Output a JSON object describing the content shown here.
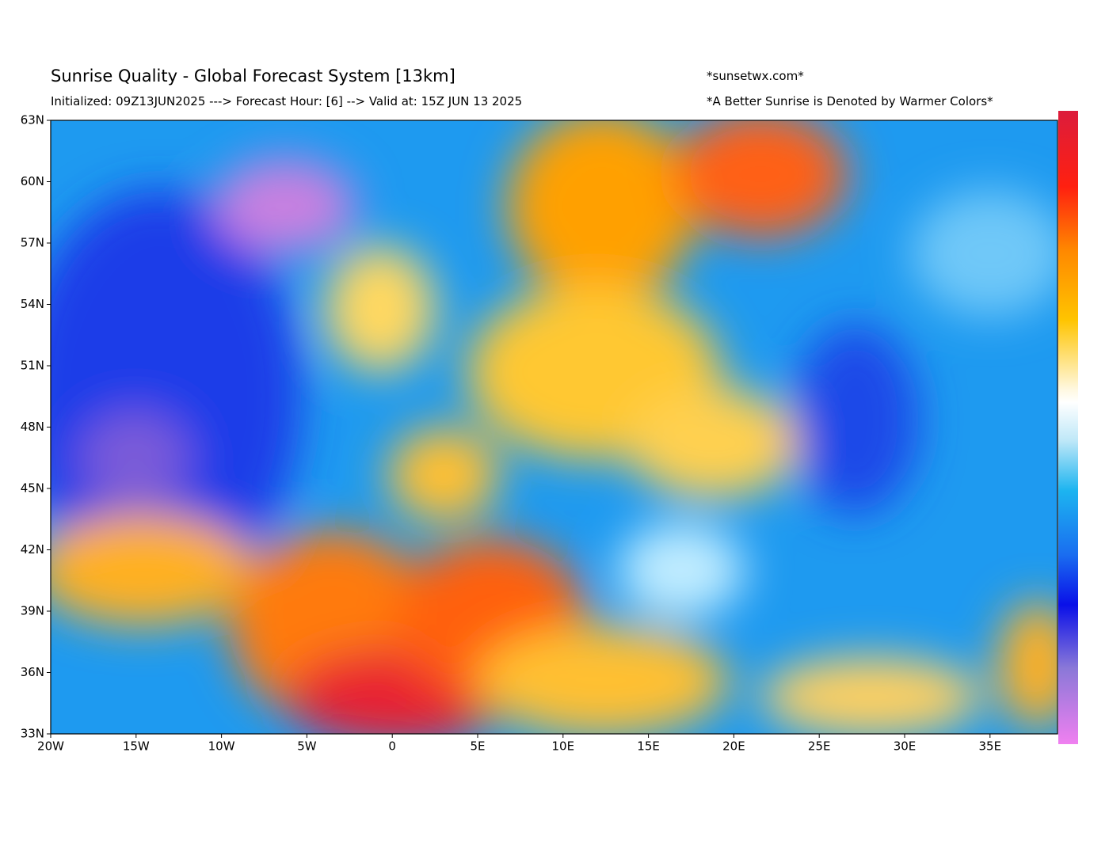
{
  "header": {
    "title": "Sunrise Quality - Global Forecast System [13km]",
    "subtitle": "Initialized: 09Z13JUN2025 ---> Forecast Hour: [6] --> Valid at: 15Z JUN 13 2025",
    "website": "*sunsetwx.com*",
    "note": "*A Better Sunrise is Denoted by Warmer Colors*"
  },
  "map": {
    "lat_labels": [
      "63N",
      "60N",
      "57N",
      "54N",
      "51N",
      "48N",
      "45N",
      "42N",
      "39N",
      "36N",
      "33N"
    ],
    "lon_labels": [
      "20W",
      "15W",
      "10W",
      "5W",
      "0",
      "5E",
      "10E",
      "15E",
      "20E",
      "25E",
      "30E",
      "35E"
    ]
  }
}
